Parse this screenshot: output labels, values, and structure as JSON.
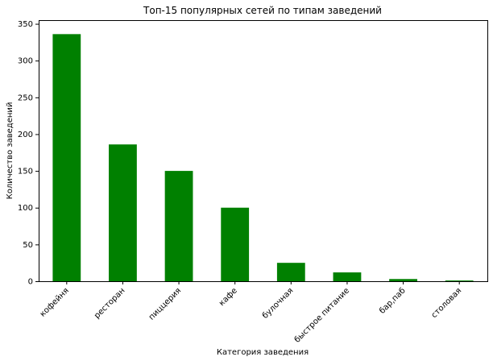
{
  "chart_data": {
    "type": "bar",
    "title": "Топ-15 популярных сетей по типам заведений",
    "xlabel": "Категория заведения",
    "ylabel": "Количество заведений",
    "categories": [
      "кофейня",
      "ресторан",
      "пиццерия",
      "кафе",
      "булочная",
      "быстрое питание",
      "бар,паб",
      "столовая"
    ],
    "series": [
      {
        "values": [
          336,
          186,
          150,
          100,
          25,
          12,
          3,
          1
        ]
      }
    ],
    "ylim": [
      0,
      355
    ],
    "yticks": [
      0,
      50,
      100,
      150,
      200,
      250,
      300,
      350
    ],
    "bar_color": "#008000",
    "grid": false,
    "legend": "none"
  }
}
